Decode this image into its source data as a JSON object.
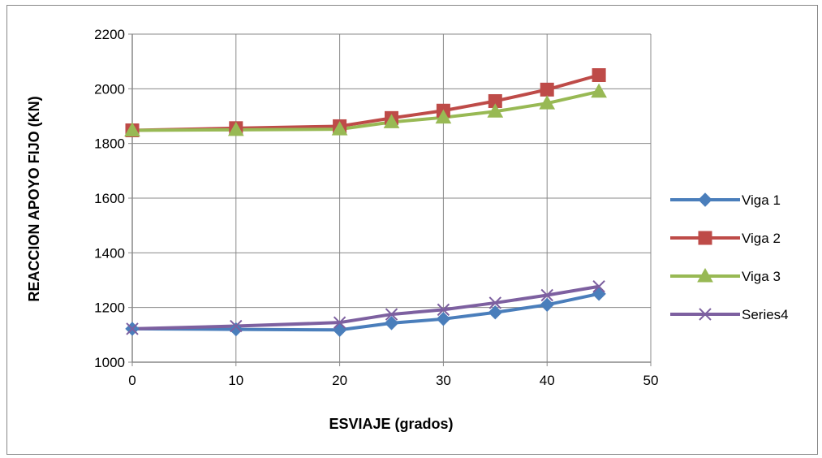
{
  "chart_data": {
    "type": "line",
    "title": "",
    "xlabel": "ESVIAJE (grados)",
    "ylabel": "REACCION APOYO FIJO (KN)",
    "xlim": [
      0,
      50
    ],
    "ylim": [
      1000,
      2200
    ],
    "xticks": [
      0,
      10,
      20,
      30,
      40,
      50
    ],
    "yticks": [
      1000,
      1200,
      1400,
      1600,
      1800,
      2000,
      2200
    ],
    "grid": true,
    "legend_position": "right",
    "x": [
      0,
      10,
      20,
      25,
      30,
      35,
      40,
      45
    ],
    "series": [
      {
        "name": "Viga 1",
        "color": "#4A7EBB",
        "marker": "diamond",
        "values": [
          1122,
          1120,
          1118,
          1143,
          1158,
          1182,
          1210,
          1250
        ]
      },
      {
        "name": "Viga 2",
        "color": "#BE4B48",
        "marker": "square",
        "values": [
          1848,
          1856,
          1863,
          1893,
          1920,
          1955,
          1997,
          2050
        ]
      },
      {
        "name": "Viga 3",
        "color": "#98B954",
        "marker": "triangle",
        "values": [
          1848,
          1850,
          1852,
          1878,
          1895,
          1917,
          1947,
          1990
        ]
      },
      {
        "name": "Series4",
        "color": "#7D60A0",
        "marker": "x",
        "values": [
          1122,
          1132,
          1145,
          1175,
          1192,
          1217,
          1245,
          1277
        ]
      }
    ]
  }
}
